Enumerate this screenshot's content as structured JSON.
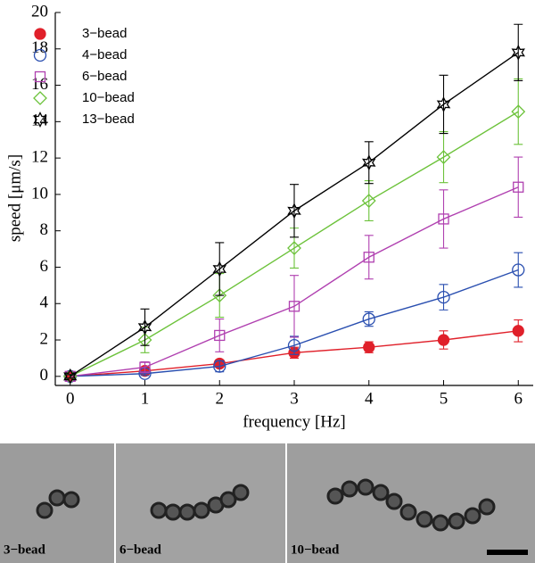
{
  "chart_data": {
    "type": "line",
    "xlabel": "frequency [Hz]",
    "ylabel": "speed [μm/s]",
    "x": [
      0,
      1,
      2,
      3,
      4,
      5,
      6
    ],
    "xlim": [
      -0.2,
      6.2
    ],
    "xticks": [
      0,
      1,
      2,
      3,
      4,
      5,
      6
    ],
    "ylim": [
      -0.5,
      20
    ],
    "yticks": [
      0,
      2,
      4,
      6,
      8,
      10,
      12,
      14,
      16,
      18,
      20
    ],
    "legend": "upper left",
    "series": [
      {
        "name": "3−bead",
        "color": "#e0202a",
        "marker": "circle-filled",
        "values": [
          0,
          0.3,
          0.7,
          1.3,
          1.6,
          2.0,
          2.5
        ],
        "errors": [
          0.1,
          0.15,
          0.2,
          0.3,
          0.3,
          0.5,
          0.6
        ]
      },
      {
        "name": "4−bead",
        "color": "#2a4fb0",
        "marker": "circle",
        "values": [
          0,
          0.15,
          0.55,
          1.7,
          3.15,
          4.35,
          5.85
        ],
        "errors": [
          0.1,
          0.1,
          0.3,
          0.5,
          0.4,
          0.7,
          0.95
        ]
      },
      {
        "name": "6−bead",
        "color": "#b040b0",
        "marker": "square",
        "values": [
          0,
          0.5,
          2.25,
          3.85,
          6.55,
          8.65,
          10.4
        ],
        "errors": [
          0.1,
          0.3,
          0.9,
          1.7,
          1.2,
          1.6,
          1.65
        ]
      },
      {
        "name": "10−bead",
        "color": "#6cc23a",
        "marker": "diamond",
        "values": [
          0,
          2.0,
          4.45,
          7.05,
          9.65,
          12.05,
          14.55
        ],
        "errors": [
          0.1,
          0.7,
          1.2,
          1.1,
          1.1,
          1.4,
          1.8
        ]
      },
      {
        "name": "13−bead",
        "color": "#000000",
        "marker": "star",
        "values": [
          0,
          2.7,
          5.9,
          9.1,
          11.75,
          14.95,
          17.8
        ],
        "errors": [
          0.1,
          1.0,
          1.45,
          1.45,
          1.15,
          1.6,
          1.55
        ]
      }
    ]
  },
  "panels": [
    {
      "label": "3−bead"
    },
    {
      "label": "6−bead"
    },
    {
      "label": "10−bead"
    }
  ]
}
